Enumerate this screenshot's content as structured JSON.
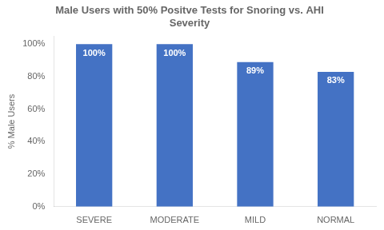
{
  "chart_data": {
    "type": "bar",
    "title": "Male Users with 50% Positve Tests for Snoring vs. AHI\nSeverity",
    "categories": [
      "SEVERE",
      "MODERATE",
      "MILD",
      "NORMAL"
    ],
    "values": [
      100,
      100,
      89,
      83
    ],
    "value_labels": [
      "100%",
      "100%",
      "89%",
      "83%"
    ],
    "data_labels": true,
    "color": "#4472C4",
    "ylabel": "% Male Users",
    "ylim": [
      0,
      105
    ],
    "yticks": [
      {
        "value": 0,
        "label": "0%"
      },
      {
        "value": 20,
        "label": "20%"
      },
      {
        "value": 40,
        "label": "40%"
      },
      {
        "value": 60,
        "label": "60%"
      },
      {
        "value": 80,
        "label": "80%"
      },
      {
        "value": 100,
        "label": "100%"
      }
    ],
    "grid": false
  }
}
